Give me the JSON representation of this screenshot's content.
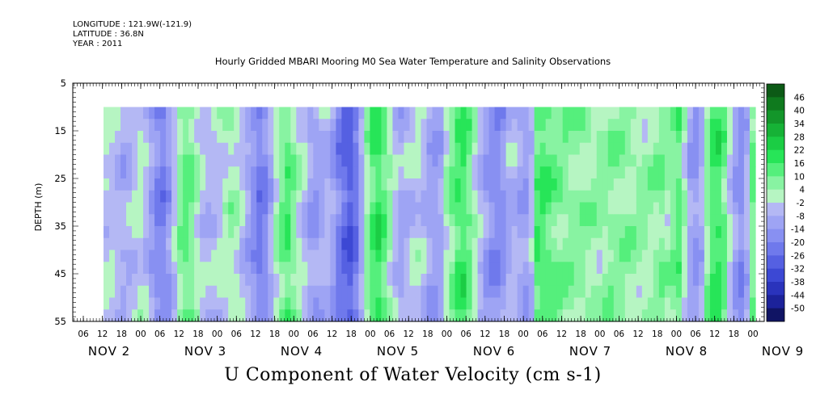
{
  "header": {
    "longitude": "LONGITUDE : 121.9W(-121.9)",
    "latitude": "LATITUDE : 36.8N",
    "year": "YEAR : 2011"
  },
  "chart_data": {
    "type": "heatmap",
    "title": "Hourly Gridded MBARI Mooring M0 Sea Water Temperature and Salinity Observations",
    "xlabel": "U Component of Water Velocity (cm s-1)",
    "ylabel": "DEPTH (m)",
    "ylim": [
      55,
      5
    ],
    "yticks": [
      5,
      15,
      25,
      35,
      45,
      55
    ],
    "data_depth_range": [
      10,
      55
    ],
    "x_hour_ticks": [
      "06",
      "12",
      "18",
      "00",
      "06",
      "12",
      "18",
      "00",
      "06",
      "12",
      "18",
      "00",
      "06",
      "12",
      "18",
      "00",
      "06",
      "12",
      "18",
      "00",
      "06",
      "12",
      "18",
      "00",
      "06",
      "12",
      "18",
      "00",
      "06",
      "12",
      "18",
      "00",
      "06",
      "12",
      "18",
      "00"
    ],
    "x_day_labels": [
      "NOV 2",
      "NOV 3",
      "NOV 4",
      "NOV 5",
      "NOV 6",
      "NOV 7",
      "NOV 8",
      "NOV 9"
    ],
    "colorbar": {
      "levels": [
        48,
        46,
        40,
        34,
        28,
        22,
        16,
        10,
        4,
        -2,
        -8,
        -14,
        -20,
        -26,
        -32,
        -38,
        -44,
        -50
      ],
      "labels": [
        "46",
        "40",
        "34",
        "28",
        "22",
        "16",
        "10",
        "4",
        "-2",
        "-8",
        "-14",
        "-20",
        "-26",
        "-32",
        "-38",
        "-44",
        "-50"
      ],
      "colors": [
        "#0c5a16",
        "#0f7a1e",
        "#13962a",
        "#16b236",
        "#1bcd44",
        "#27e558",
        "#55ef7c",
        "#88f3a2",
        "#b6f5c2",
        "#b4b8f4",
        "#9ea4f4",
        "#8890f2",
        "#6f79ec",
        "#5560e2",
        "#3c48d4",
        "#2a33bc",
        "#1c229a",
        "#101464"
      ]
    },
    "time_columns": [
      -3,
      -3,
      -6,
      -8,
      -6,
      -4,
      -1,
      -5,
      -12,
      -18,
      -20,
      -14,
      -4,
      6,
      12,
      8,
      2,
      -4,
      -6,
      -5,
      -2,
      1,
      4,
      2,
      -5,
      -10,
      -16,
      -22,
      -18,
      -8,
      2,
      10,
      14,
      8,
      0,
      -4,
      -10,
      -12,
      -8,
      -6,
      -12,
      -20,
      -26,
      -30,
      -24,
      -10,
      4,
      14,
      18,
      12,
      4,
      -4,
      -8,
      -6,
      -4,
      -2,
      -6,
      -10,
      -12,
      -10,
      2,
      8,
      14,
      16,
      10,
      2,
      -6,
      -12,
      -16,
      -18,
      -14,
      -8,
      -6,
      -10,
      -12,
      -6,
      14,
      16,
      12,
      10,
      8,
      7,
      6,
      6,
      6,
      5,
      5,
      4,
      5,
      6,
      6,
      6,
      5,
      5,
      4,
      4,
      5,
      6,
      8,
      4,
      8,
      12,
      2,
      -10,
      -14,
      -8,
      6,
      14,
      16,
      10,
      -2,
      -12,
      -16,
      -8,
      10
    ]
  }
}
